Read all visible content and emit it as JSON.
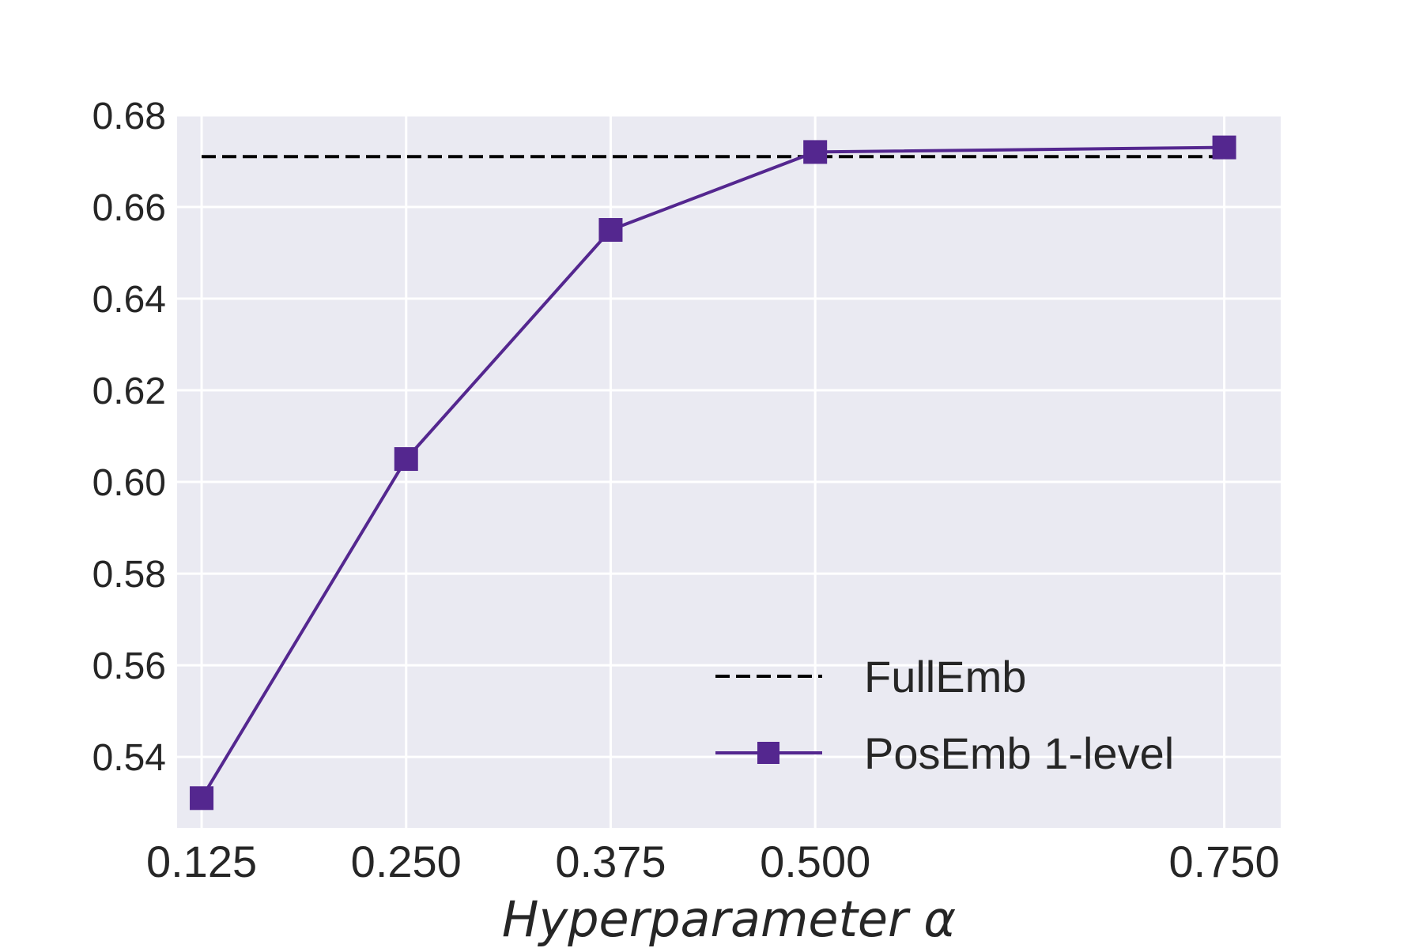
{
  "chart_data": {
    "type": "line",
    "title": "",
    "xlabel": "Hyperparameter α",
    "ylabel": "",
    "x": [
      "0.125",
      "0.250",
      "0.375",
      "0.500",
      "0.750"
    ],
    "x_values": [
      0.125,
      0.25,
      0.375,
      0.5,
      0.75
    ],
    "xlim": [
      0.11,
      0.7845
    ],
    "ylim": [
      0.5245,
      0.68
    ],
    "yticks": [
      "0.54",
      "0.56",
      "0.58",
      "0.60",
      "0.62",
      "0.64",
      "0.66",
      "0.68"
    ],
    "ytick_values": [
      0.54,
      0.56,
      0.58,
      0.6,
      0.62,
      0.64,
      0.66,
      0.68
    ],
    "grid": true,
    "legend_position": "lower-right",
    "series": [
      {
        "name": "FullEmb",
        "style": "dashed",
        "color": "#000000",
        "marker": "none",
        "values": [
          0.671,
          0.671,
          0.671,
          0.671,
          0.671
        ]
      },
      {
        "name": "PosEmb 1-level",
        "style": "solid",
        "color": "#54278f",
        "marker": "square",
        "values": [
          0.531,
          0.605,
          0.655,
          0.672,
          0.673
        ]
      }
    ]
  }
}
